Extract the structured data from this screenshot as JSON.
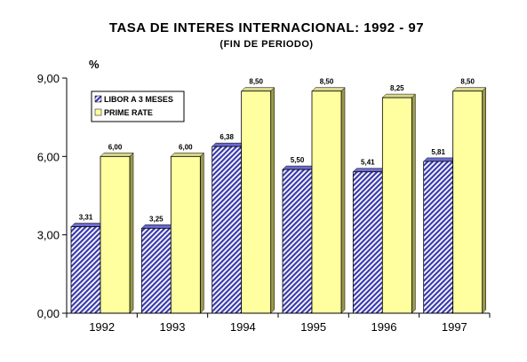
{
  "chart_data": {
    "type": "bar",
    "title": "TASA DE INTERES INTERNACIONAL: 1992 - 97",
    "subtitle": "(FIN DE PERIODO)",
    "ylabel": "%",
    "xlabel": "",
    "categories": [
      "1992",
      "1993",
      "1994",
      "1995",
      "1996",
      "1997"
    ],
    "series": [
      {
        "name": "LIBOR A 3 MESES",
        "values": [
          3.31,
          3.25,
          6.38,
          5.5,
          5.41,
          5.81
        ],
        "labels": [
          "3,31",
          "3,25",
          "6,38",
          "5,50",
          "5,41",
          "5,81"
        ],
        "color": "#3A3AB0"
      },
      {
        "name": "PRIME RATE",
        "values": [
          6.0,
          6.0,
          8.5,
          8.5,
          8.25,
          8.5
        ],
        "labels": [
          "6,00",
          "6,00",
          "8,50",
          "8,50",
          "8,25",
          "8,50"
        ],
        "color": "#FFFFA0"
      }
    ],
    "ylim": [
      0,
      9
    ],
    "yticks": [
      0,
      3,
      6,
      9
    ],
    "ytick_labels": [
      "0,00",
      "3,00",
      "6,00",
      "9,00"
    ],
    "legend_position": "top-left",
    "grid": false
  }
}
